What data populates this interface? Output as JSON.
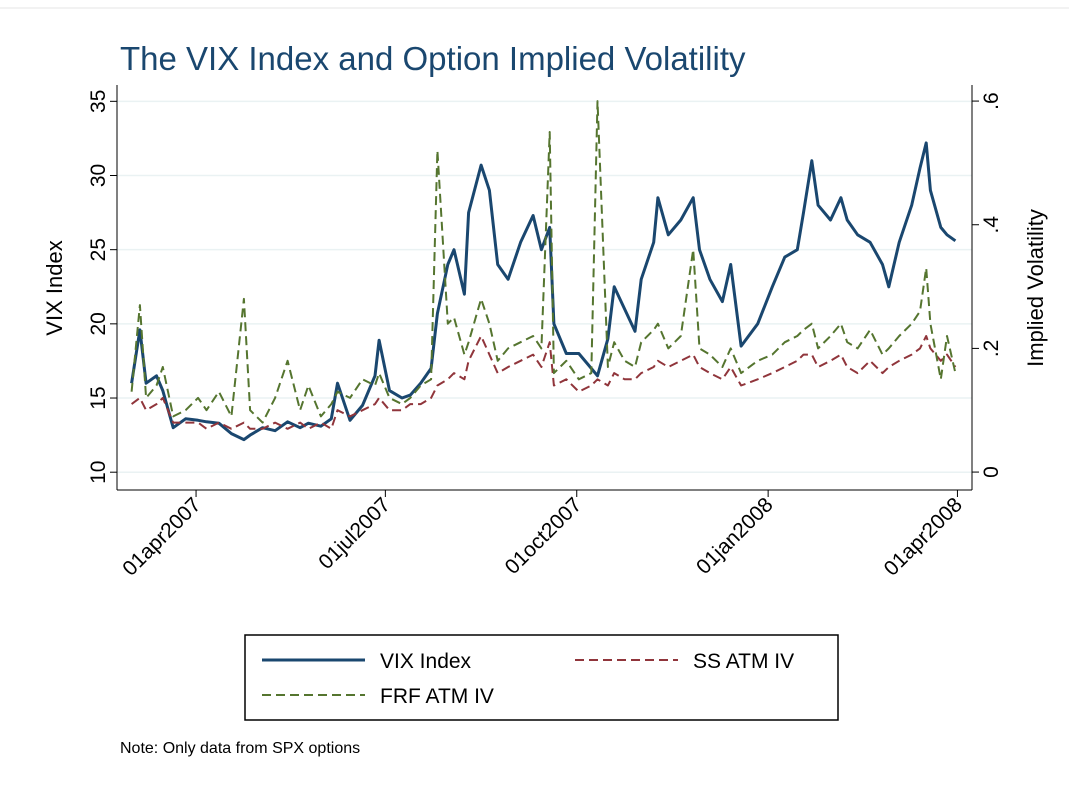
{
  "chart_data": {
    "type": "line",
    "title": "The VIX Index and Option Implied Volatility",
    "ylabel": "VIX Index",
    "y2label": "Implied Volatility",
    "note": "Note: Only data from SPX options",
    "grid": true,
    "legend_position": "bottom",
    "xlim": [
      "2007-02-22",
      "2008-04-08"
    ],
    "xticks": [
      {
        "value": "2007-04-01",
        "label": "01apr2007"
      },
      {
        "value": "2007-07-01",
        "label": "01jul2007"
      },
      {
        "value": "2007-10-01",
        "label": "01oct2007"
      },
      {
        "value": "2008-01-01",
        "label": "01jan2008"
      },
      {
        "value": "2008-04-01",
        "label": "01apr2008"
      }
    ],
    "ylim": [
      8.8,
      36.1
    ],
    "yticks": [
      10,
      15,
      20,
      25,
      30,
      35
    ],
    "y2lim": [
      -0.029,
      0.626
    ],
    "y2ticks": [
      0,
      {
        "value": 0.2,
        "label": ".2"
      },
      {
        "value": 0.4,
        "label": ".4"
      },
      {
        "value": 0.6,
        "label": ".6"
      }
    ],
    "x": [
      "2007-03-01",
      "2007-03-05",
      "2007-03-08",
      "2007-03-13",
      "2007-03-16",
      "2007-03-21",
      "2007-03-27",
      "2007-04-02",
      "2007-04-06",
      "2007-04-12",
      "2007-04-18",
      "2007-04-24",
      "2007-04-27",
      "2007-05-03",
      "2007-05-09",
      "2007-05-15",
      "2007-05-21",
      "2007-05-25",
      "2007-05-31",
      "2007-06-05",
      "2007-06-08",
      "2007-06-14",
      "2007-06-20",
      "2007-06-26",
      "2007-06-28",
      "2007-07-03",
      "2007-07-09",
      "2007-07-13",
      "2007-07-18",
      "2007-07-23",
      "2007-07-26",
      "2007-07-31",
      "2007-08-03",
      "2007-08-08",
      "2007-08-10",
      "2007-08-16",
      "2007-08-20",
      "2007-08-24",
      "2007-08-29",
      "2007-09-04",
      "2007-09-10",
      "2007-09-14",
      "2007-09-18",
      "2007-09-20",
      "2007-09-26",
      "2007-10-02",
      "2007-10-08",
      "2007-10-11",
      "2007-10-16",
      "2007-10-19",
      "2007-10-24",
      "2007-10-29",
      "2007-11-01",
      "2007-11-07",
      "2007-11-09",
      "2007-11-14",
      "2007-11-20",
      "2007-11-26",
      "2007-11-29",
      "2007-12-04",
      "2007-12-10",
      "2007-12-14",
      "2007-12-19",
      "2007-12-27",
      "2008-01-03",
      "2008-01-09",
      "2008-01-15",
      "2008-01-18",
      "2008-01-22",
      "2008-01-25",
      "2008-01-31",
      "2008-02-05",
      "2008-02-08",
      "2008-02-13",
      "2008-02-19",
      "2008-02-25",
      "2008-02-28",
      "2008-03-04",
      "2008-03-10",
      "2008-03-14",
      "2008-03-17",
      "2008-03-19",
      "2008-03-24",
      "2008-03-27",
      "2008-03-31"
    ],
    "series": [
      {
        "name": "VIX Index",
        "color": "#1a476f",
        "style": "solid",
        "width": 3,
        "values": [
          16.0,
          19.6,
          16.0,
          16.5,
          15.5,
          13.0,
          13.6,
          13.5,
          13.4,
          13.3,
          12.6,
          12.2,
          12.5,
          13.0,
          12.8,
          13.4,
          13.0,
          13.3,
          13.1,
          13.6,
          16.0,
          13.5,
          14.5,
          16.5,
          18.9,
          15.5,
          15.0,
          15.2,
          16.0,
          17.0,
          20.7,
          24.0,
          25.0,
          22.0,
          27.5,
          30.7,
          29.0,
          24.0,
          23.0,
          25.5,
          27.3,
          25.0,
          26.5,
          20.0,
          18.0,
          18.0,
          17.0,
          16.5,
          19.0,
          22.5,
          21.0,
          19.5,
          23.0,
          25.5,
          28.5,
          26.0,
          27.0,
          28.5,
          25.0,
          23.0,
          21.5,
          24.0,
          18.5,
          20.0,
          22.5,
          24.5,
          25.0,
          27.5,
          31.0,
          28.0,
          27.0,
          28.5,
          27.0,
          26.0,
          25.5,
          24.0,
          22.5,
          25.5,
          28.0,
          30.5,
          32.2,
          29.0,
          26.5,
          26.0,
          25.6
        ]
      },
      {
        "name": "SS ATM IV",
        "color": "#90353b",
        "style": "dashed",
        "width": 2,
        "axis": "y2",
        "values": [
          0.11,
          0.12,
          0.1,
          0.11,
          0.12,
          0.08,
          0.08,
          0.08,
          0.07,
          0.08,
          0.07,
          0.08,
          0.07,
          0.07,
          0.08,
          0.07,
          0.08,
          0.07,
          0.08,
          0.07,
          0.1,
          0.09,
          0.1,
          0.11,
          0.12,
          0.1,
          0.1,
          0.11,
          0.11,
          0.12,
          0.14,
          0.15,
          0.16,
          0.15,
          0.18,
          0.22,
          0.19,
          0.16,
          0.17,
          0.18,
          0.19,
          0.17,
          0.21,
          0.14,
          0.15,
          0.13,
          0.14,
          0.15,
          0.14,
          0.16,
          0.15,
          0.15,
          0.16,
          0.17,
          0.18,
          0.17,
          0.18,
          0.19,
          0.17,
          0.16,
          0.15,
          0.17,
          0.14,
          0.15,
          0.16,
          0.17,
          0.18,
          0.19,
          0.19,
          0.17,
          0.18,
          0.19,
          0.17,
          0.16,
          0.18,
          0.16,
          0.17,
          0.18,
          0.19,
          0.2,
          0.22,
          0.2,
          0.18,
          0.19,
          0.17
        ]
      },
      {
        "name": "FRF ATM IV",
        "color": "#55752f",
        "style": "dashed",
        "width": 2,
        "axis": "y2",
        "values": [
          0.13,
          0.27,
          0.12,
          0.14,
          0.17,
          0.09,
          0.1,
          0.12,
          0.1,
          0.13,
          0.09,
          0.28,
          0.1,
          0.08,
          0.12,
          0.18,
          0.1,
          0.14,
          0.09,
          0.11,
          0.13,
          0.12,
          0.15,
          0.14,
          0.16,
          0.12,
          0.11,
          0.12,
          0.14,
          0.15,
          0.52,
          0.24,
          0.25,
          0.19,
          0.21,
          0.28,
          0.24,
          0.18,
          0.2,
          0.21,
          0.22,
          0.2,
          0.55,
          0.16,
          0.18,
          0.15,
          0.16,
          0.6,
          0.17,
          0.21,
          0.18,
          0.17,
          0.21,
          0.23,
          0.24,
          0.2,
          0.22,
          0.36,
          0.2,
          0.19,
          0.17,
          0.2,
          0.16,
          0.18,
          0.19,
          0.21,
          0.22,
          0.23,
          0.24,
          0.2,
          0.22,
          0.24,
          0.21,
          0.2,
          0.23,
          0.19,
          0.2,
          0.22,
          0.24,
          0.26,
          0.33,
          0.24,
          0.15,
          0.22,
          0.16
        ]
      }
    ]
  }
}
